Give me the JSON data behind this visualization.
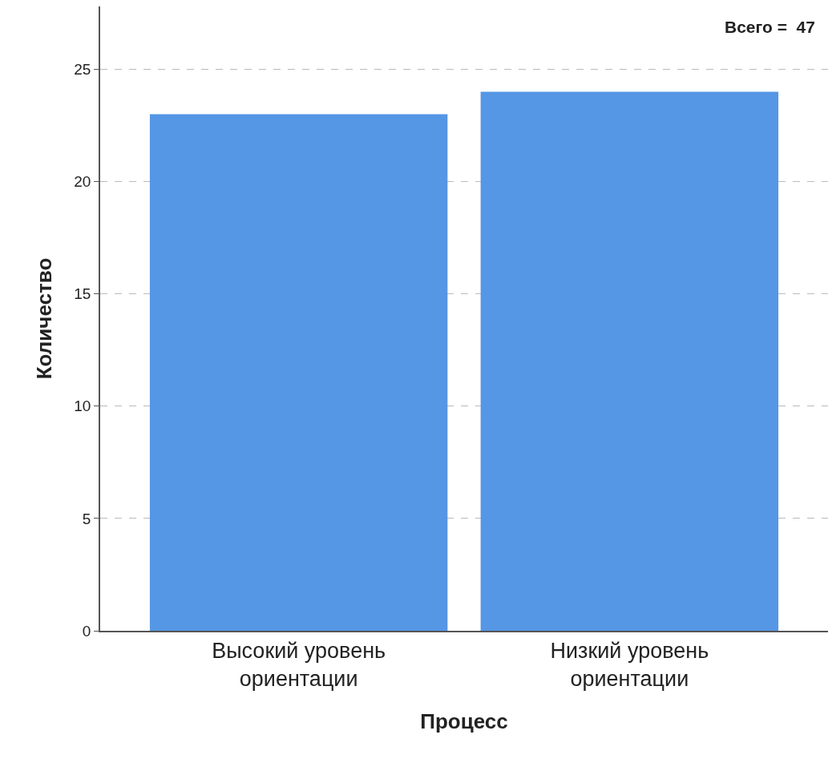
{
  "chart_data": {
    "type": "bar",
    "xlabel": "Процесс",
    "ylabel": "Количество",
    "categories": [
      "Высокий уровень\nориентации",
      "Низкий уровень\nориентации"
    ],
    "values": [
      23,
      24
    ],
    "color": "#5596e5",
    "ylim": [
      0,
      27.8
    ],
    "yticks": [
      0,
      5,
      10,
      15,
      20,
      25
    ],
    "grid": "y",
    "annotations": [
      "Всего =  47"
    ]
  }
}
